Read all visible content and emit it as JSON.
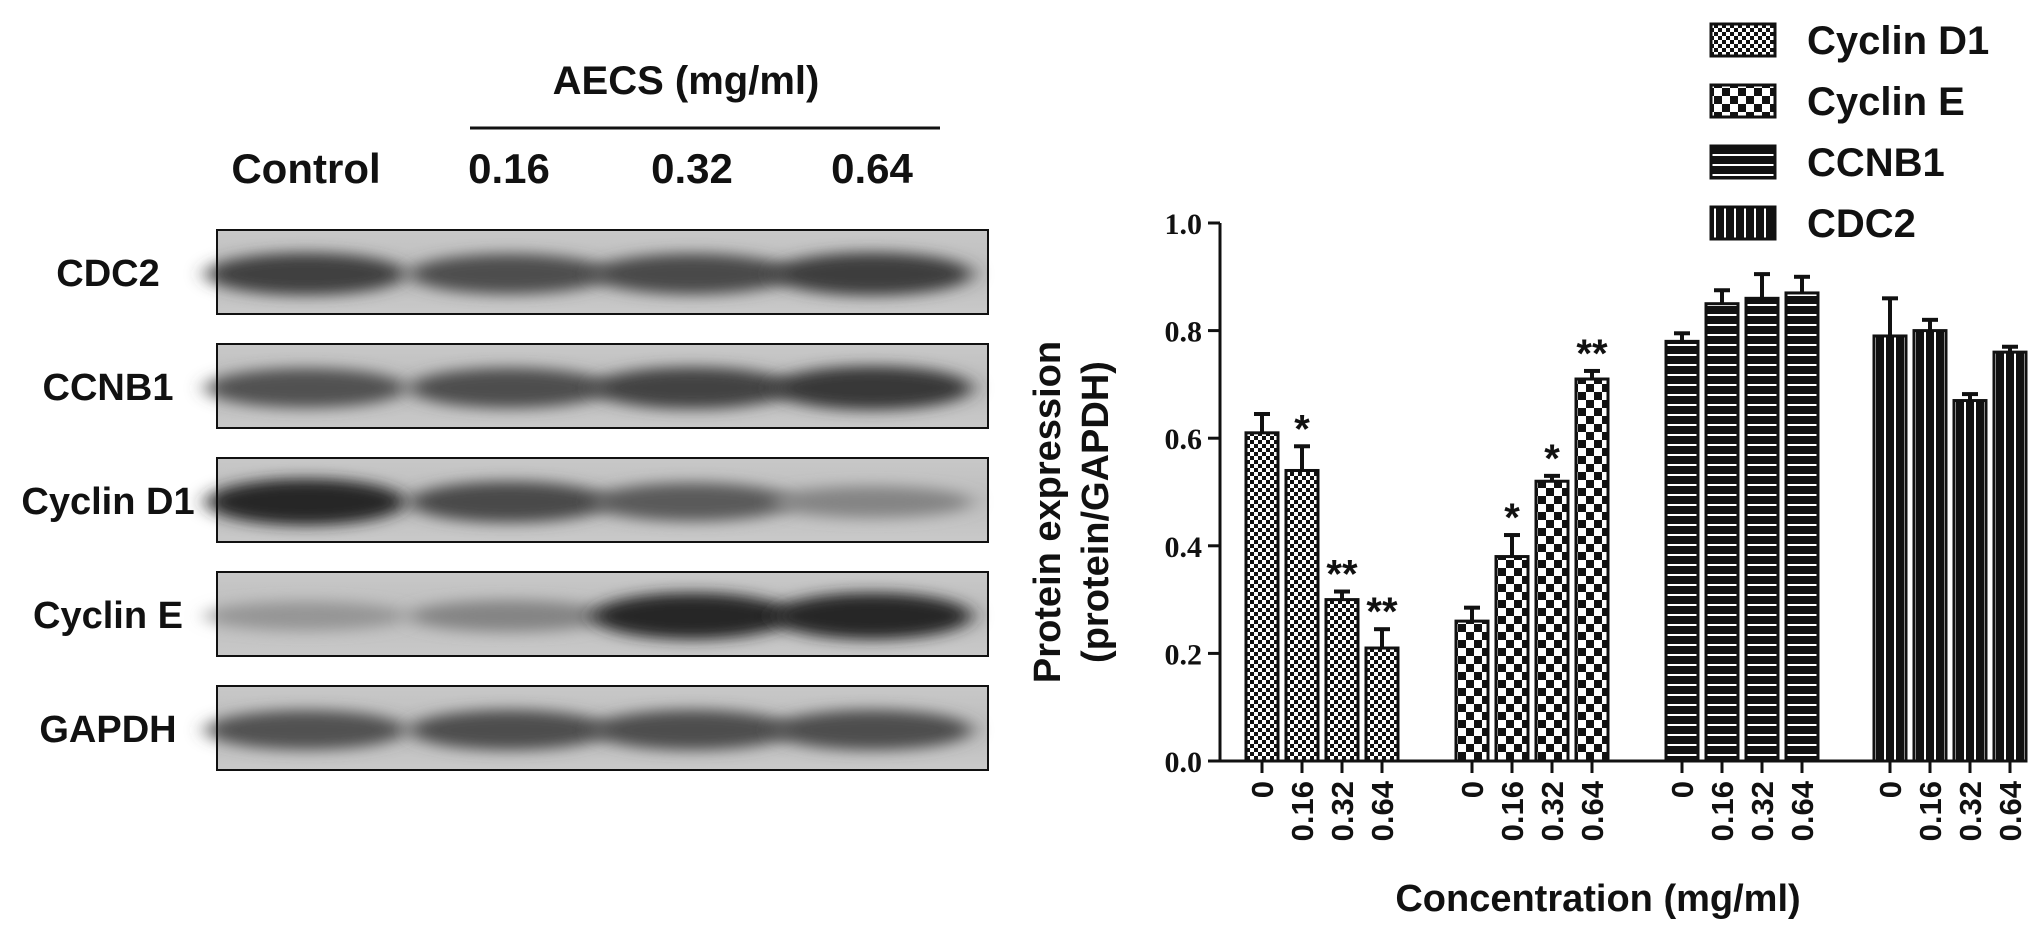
{
  "western_blot": {
    "treatment_label": "AECS (mg/ml)",
    "lane_labels": [
      "Control",
      "0.16",
      "0.32",
      "0.64"
    ],
    "rows": [
      {
        "label": "CDC2",
        "band_intensity": [
          0.8,
          0.72,
          0.74,
          0.82
        ]
      },
      {
        "label": "CCNB1",
        "band_intensity": [
          0.7,
          0.72,
          0.78,
          0.85
        ]
      },
      {
        "label": "Cyclin D1",
        "band_intensity": [
          0.95,
          0.75,
          0.65,
          0.4
        ]
      },
      {
        "label": "Cyclin E",
        "band_intensity": [
          0.3,
          0.4,
          0.95,
          0.95
        ]
      },
      {
        "label": "GAPDH",
        "band_intensity": [
          0.7,
          0.72,
          0.72,
          0.72
        ]
      }
    ]
  },
  "chart_data": {
    "type": "bar",
    "ylabel_line1": "Protein expression",
    "ylabel_line2": "(protein/GAPDH)",
    "xlabel": "Concentration (mg/ml)",
    "ylim": [
      0,
      1.0
    ],
    "yticks": [
      "0.0",
      "0.2",
      "0.4",
      "0.6",
      "0.8",
      "1.0"
    ],
    "ytick_values": [
      0,
      0.2,
      0.4,
      0.6,
      0.8,
      1.0
    ],
    "categories": [
      "0",
      "0.16",
      "0.32",
      "0.64"
    ],
    "legend_placement": "top-right",
    "series": [
      {
        "name": "Cyclin D1",
        "pattern": "checker-fine",
        "values": [
          0.61,
          0.54,
          0.3,
          0.21
        ],
        "errors": [
          0.035,
          0.045,
          0.015,
          0.035
        ],
        "annotations": [
          "",
          "*",
          "**",
          "**"
        ]
      },
      {
        "name": "Cyclin E",
        "pattern": "checker-coarse",
        "values": [
          0.26,
          0.38,
          0.52,
          0.71
        ],
        "errors": [
          0.025,
          0.04,
          0.01,
          0.015
        ],
        "annotations": [
          "",
          "*",
          "*",
          "**"
        ]
      },
      {
        "name": "CCNB1",
        "pattern": "horizontal-lines",
        "values": [
          0.78,
          0.85,
          0.86,
          0.87
        ],
        "errors": [
          0.015,
          0.025,
          0.045,
          0.03
        ],
        "annotations": [
          "",
          "",
          "",
          ""
        ]
      },
      {
        "name": "CDC2",
        "pattern": "vertical-lines",
        "values": [
          0.79,
          0.8,
          0.67,
          0.76
        ],
        "errors": [
          0.07,
          0.02,
          0.012,
          0.01
        ],
        "annotations": [
          "",
          "",
          "",
          ""
        ]
      }
    ]
  }
}
